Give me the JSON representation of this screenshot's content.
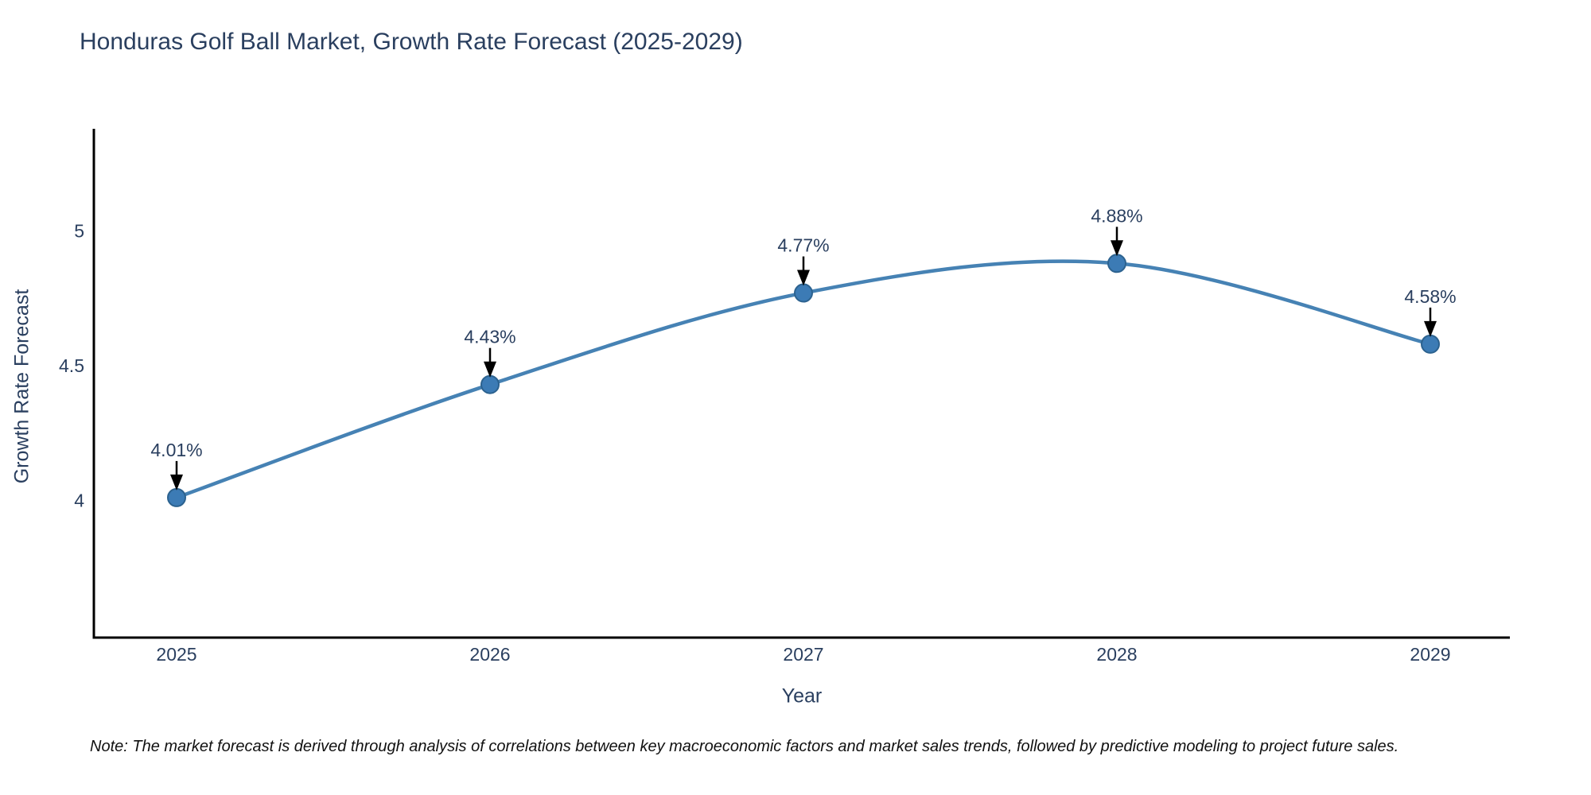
{
  "title": "Honduras Golf Ball Market, Growth Rate Forecast (2025-2029)",
  "note": "Note: The market forecast is derived through analysis of correlations between key macroeconomic factors and market sales trends, followed by predictive modeling to project future sales.",
  "chart_data": {
    "type": "line",
    "title": "Honduras Golf Ball Market, Growth Rate Forecast (2025-2029)",
    "xlabel": "Year",
    "ylabel": "Growth Rate Forecast",
    "x": [
      2025,
      2026,
      2027,
      2028,
      2029
    ],
    "values": [
      4.01,
      4.43,
      4.77,
      4.88,
      4.58
    ],
    "point_labels": [
      "4.01%",
      "4.43%",
      "4.77%",
      "4.88%",
      "4.58%"
    ],
    "xtick_labels": [
      "2025",
      "2026",
      "2027",
      "2028",
      "2029"
    ],
    "yticks": [
      4,
      4.5,
      5
    ],
    "ytick_labels": [
      "4",
      "4.5",
      "5"
    ],
    "xlim": [
      2024.74,
      2029.26
    ],
    "ylim": [
      3.49,
      5.38
    ],
    "grid": false,
    "line_shape": "spline",
    "legend": "none",
    "colors": {
      "line": "#4682b4",
      "marker_fill": "#3c7bb5",
      "marker_edge": "#2c628f",
      "axis_line": "#000000",
      "tick_text": "#2a3f5f",
      "annotation_text": "#2a3f5f",
      "annotation_arrow": "#000000",
      "title_text": "#2a3f5f",
      "note_text": "#111111"
    }
  }
}
